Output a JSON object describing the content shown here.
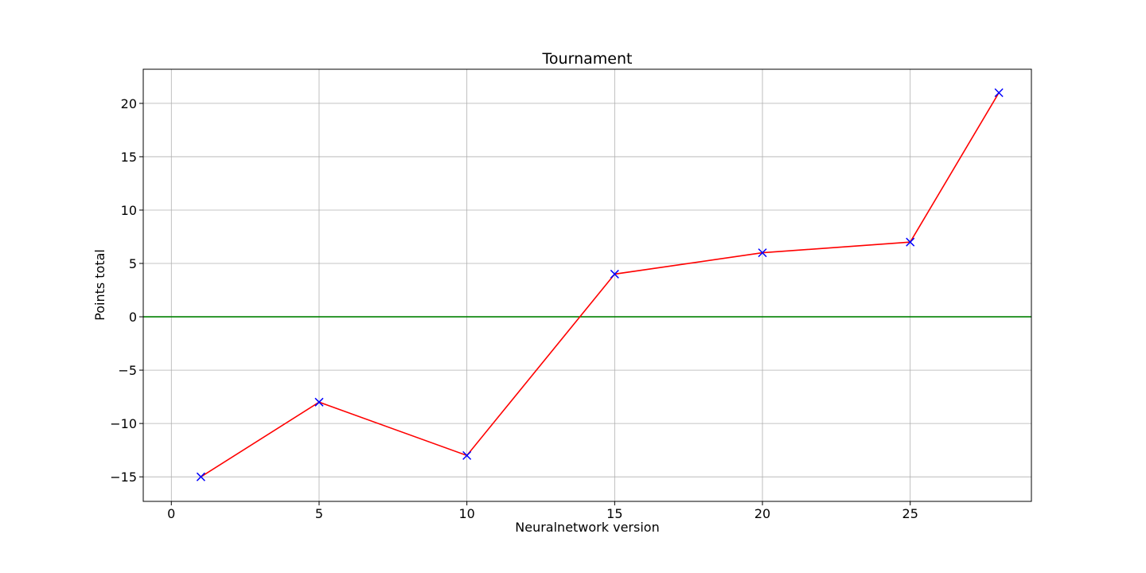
{
  "chart_data": {
    "type": "line",
    "title": "Tournament",
    "xlabel": "Neuralnetwork version",
    "ylabel": "Points total",
    "xlim": [
      -0.95,
      29.1
    ],
    "ylim": [
      -17.3,
      23.2
    ],
    "xticks": [
      0,
      5,
      10,
      15,
      20,
      25
    ],
    "yticks": [
      -15,
      -10,
      -5,
      0,
      5,
      10,
      15,
      20
    ],
    "grid": true,
    "series": [
      {
        "x": [
          1,
          5,
          10,
          15,
          20,
          25,
          28
        ],
        "y": [
          -15,
          -8,
          -13,
          4,
          6,
          7,
          21
        ],
        "line_color": "#ff0000",
        "marker": "x",
        "marker_color": "#0000ff"
      }
    ],
    "reference_lines": [
      {
        "y": 0,
        "color": "#008000"
      }
    ]
  }
}
